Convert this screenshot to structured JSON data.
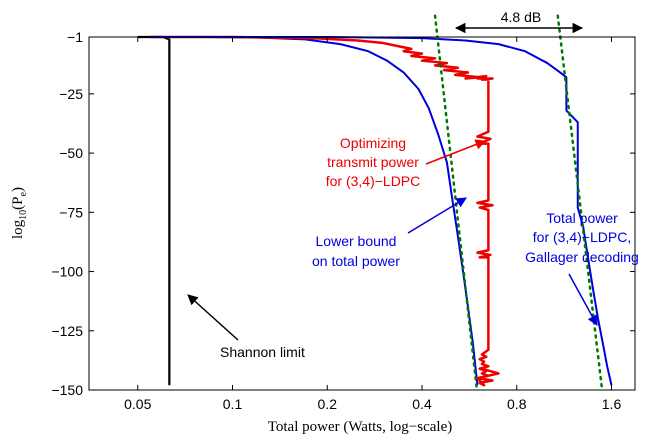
{
  "chart_data": {
    "type": "line",
    "title": "",
    "xlabel": "Total power (Watts, log−scale)",
    "ylabel_base": "log",
    "ylabel_sub": "10",
    "ylabel_inner": "(P",
    "ylabel_inner_sub": "e",
    "ylabel_close": ")",
    "xscale": "log",
    "xlim": [
      0.035,
      1.9
    ],
    "ylim": [
      -150,
      -1
    ],
    "xticks": [
      0.05,
      0.1,
      0.2,
      0.4,
      0.8,
      1.6
    ],
    "xtick_labels": [
      "0.05",
      "0.1",
      "0.2",
      "0.4",
      "0.8",
      "1.6"
    ],
    "yticks": [
      -1,
      -25,
      -50,
      -75,
      -100,
      -125,
      -150
    ],
    "ytick_labels": [
      "−1",
      "−25",
      "−50",
      "−75",
      "−100",
      "−125",
      "−150"
    ],
    "grid": false,
    "colors": {
      "shannon": "#000000",
      "lower_bound": "#0000dd",
      "optimizing": "#ee0000",
      "gallager": "#0000dd",
      "asymptote": "#007700"
    },
    "series": [
      {
        "key": "shannon",
        "x": [
          0.05,
          0.06,
          0.063,
          0.063,
          0.063
        ],
        "y": [
          -1,
          -1,
          -2,
          -75,
          -148
        ]
      },
      {
        "key": "lower_bound",
        "x": [
          0.055,
          0.08,
          0.12,
          0.17,
          0.22,
          0.27,
          0.31,
          0.35,
          0.39,
          0.42,
          0.45,
          0.48,
          0.5,
          0.52,
          0.54,
          0.56,
          0.58,
          0.6
        ],
        "y": [
          -1,
          -1,
          -1.2,
          -2,
          -4,
          -7,
          -11,
          -16,
          -23,
          -31,
          -42,
          -54,
          -70,
          -85,
          -100,
          -115,
          -130,
          -148
        ]
      },
      {
        "key": "optimizing",
        "x": [
          0.055,
          0.1,
          0.18,
          0.25,
          0.3,
          0.34,
          0.37,
          0.35,
          0.4,
          0.37,
          0.44,
          0.4,
          0.48,
          0.44,
          0.52,
          0.47,
          0.56,
          0.51,
          0.61,
          0.55,
          0.64,
          0.6,
          0.67,
          0.62,
          0.65,
          0.65,
          0.6,
          0.66,
          0.61,
          0.65,
          0.65,
          0.6,
          0.67,
          0.61,
          0.65,
          0.65,
          0.6,
          0.66,
          0.61,
          0.65,
          0.65,
          0.62,
          0.64,
          0.61,
          0.63,
          0.62,
          0.65,
          0.61,
          0.64,
          0.62,
          0.65,
          0.6,
          0.67,
          0.61,
          0.63,
          0.6,
          0.7,
          0.62
        ],
        "y": [
          -1,
          -1,
          -1.5,
          -2.5,
          -3.5,
          -5,
          -6,
          -7,
          -8,
          -9,
          -10,
          -11,
          -12,
          -13,
          -14,
          -15,
          -16,
          -17,
          -18,
          -18.5,
          -17.5,
          -18.5,
          -18.5,
          -19,
          -19,
          -41,
          -43,
          -44,
          -46,
          -46,
          -70,
          -71,
          -72,
          -73,
          -74,
          -91,
          -92,
          -93,
          -94,
          -94,
          -133,
          -135,
          -136,
          -137,
          -138,
          -139,
          -140,
          -141,
          -142,
          -143,
          -144,
          -145,
          -146,
          -147,
          -148,
          -145,
          -143,
          -141
        ]
      },
      {
        "key": "gallager",
        "x": [
          0.055,
          0.2,
          0.4,
          0.55,
          0.7,
          0.85,
          1.0,
          1.1,
          1.15,
          1.15,
          1.25,
          1.25,
          1.3,
          1.35,
          1.4,
          1.45,
          1.5,
          1.55,
          1.6
        ],
        "y": [
          -1,
          -1,
          -1.5,
          -2.5,
          -4,
          -7,
          -12,
          -16,
          -18,
          -32,
          -37,
          -73,
          -81,
          -95,
          -108,
          -120,
          -130,
          -140,
          -148
        ]
      },
      {
        "key": "asymptote_left",
        "x": [
          0.44,
          0.6
        ],
        "y": [
          8,
          -152
        ]
      },
      {
        "key": "asymptote_right",
        "x": [
          1.08,
          1.5
        ],
        "y": [
          8,
          -152
        ]
      }
    ],
    "annotations": [
      {
        "key": "shannon_label",
        "text": "Shannon limit",
        "color": "#000000"
      },
      {
        "key": "opt_label",
        "lines": [
          "Optimizing",
          "transmit power",
          "for (3,4)−LDPC"
        ],
        "color": "#ee0000"
      },
      {
        "key": "lb_label",
        "lines": [
          "Lower bound",
          "on total power"
        ],
        "color": "#0000dd"
      },
      {
        "key": "gal_label",
        "lines": [
          "Total power",
          "for (3,4)−LDPC,",
          "Gallager decoding"
        ],
        "color": "#0000dd"
      },
      {
        "key": "db_label",
        "text": "4.8 dB",
        "color": "#000000"
      }
    ]
  }
}
